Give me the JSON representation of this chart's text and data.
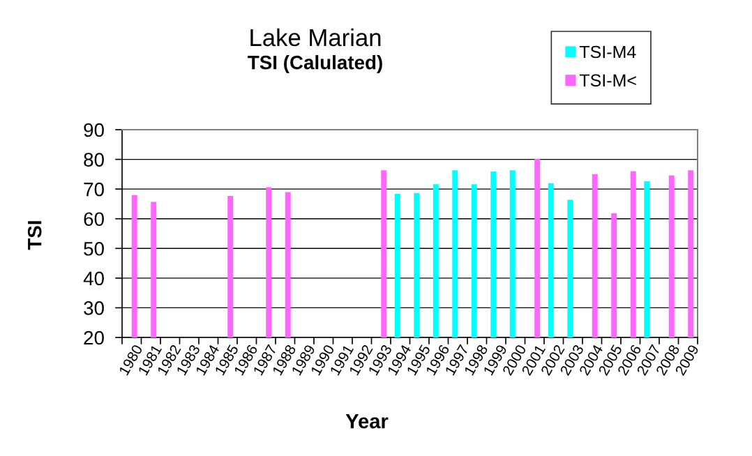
{
  "chart_data": {
    "type": "bar",
    "title": "Lake Marian",
    "subtitle": "TSI (Calulated)",
    "xlabel": "Year",
    "ylabel": "TSI",
    "categories": [
      "1980",
      "1981",
      "1982",
      "1983",
      "1984",
      "1985",
      "1986",
      "1987",
      "1988",
      "1989",
      "1990",
      "1991",
      "1992",
      "1993",
      "1994",
      "1995",
      "1996",
      "1997",
      "1998",
      "1999",
      "2000",
      "2001",
      "2002",
      "2003",
      "2004",
      "2005",
      "2006",
      "2007",
      "2008",
      "2009"
    ],
    "series": [
      {
        "name": "TSI-M4",
        "color": "#00ffff",
        "values": [
          null,
          null,
          null,
          null,
          null,
          null,
          null,
          null,
          null,
          null,
          null,
          null,
          null,
          null,
          68.4,
          68.7,
          71.6,
          76.3,
          71.6,
          75.9,
          76.3,
          null,
          72.0,
          66.4,
          null,
          null,
          null,
          72.7,
          null,
          null
        ]
      },
      {
        "name": "TSI-M<",
        "color": "#ff66ff",
        "values": [
          68.0,
          65.7,
          null,
          null,
          null,
          67.7,
          null,
          70.6,
          69.0,
          null,
          null,
          null,
          null,
          76.3,
          null,
          null,
          null,
          null,
          null,
          null,
          null,
          80.2,
          null,
          null,
          75.0,
          61.8,
          76.0,
          null,
          74.6,
          76.3
        ]
      }
    ],
    "ylim": [
      20,
      90
    ],
    "yticks": [
      20,
      30,
      40,
      50,
      60,
      70,
      80,
      90
    ],
    "grid": "y",
    "legend": "top right"
  }
}
